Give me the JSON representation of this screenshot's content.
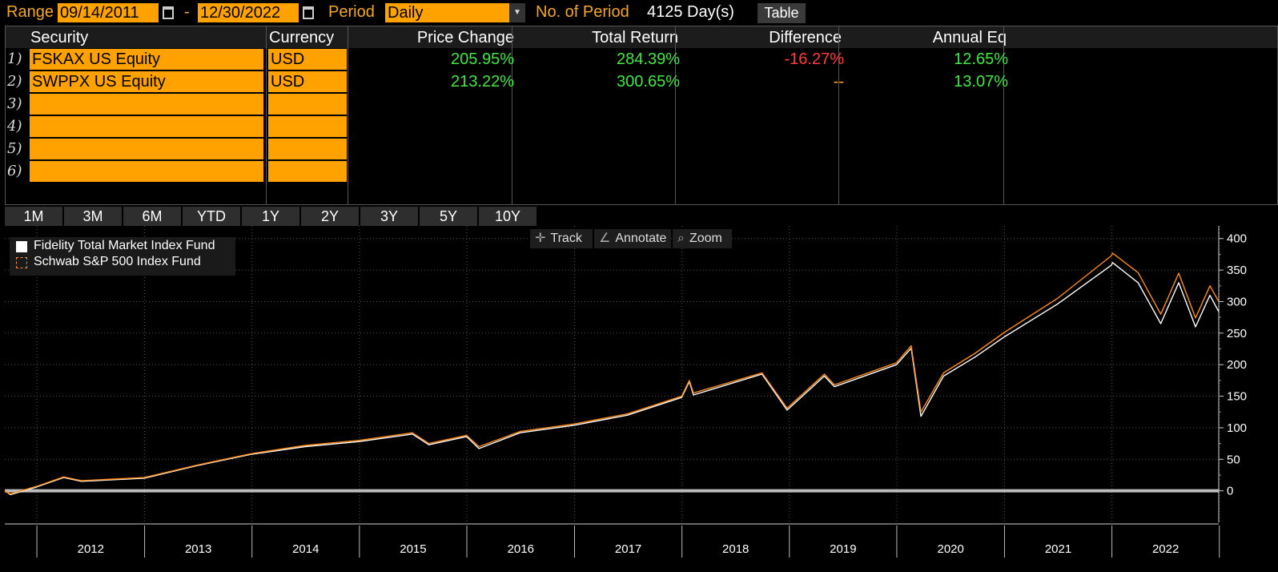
{
  "topbar": {
    "range_label": "Range",
    "start_date": "09/14/2011",
    "dash": "-",
    "end_date": "12/30/2022",
    "period_label": "Period",
    "period_value": "Daily",
    "num_period_label": "No. of Period",
    "num_period_value": "4125 Day(s)",
    "table_button": "Table"
  },
  "grid": {
    "headers": [
      "Security",
      "Currency",
      "Price Change",
      "Total Return",
      "Difference",
      "Annual Eq"
    ],
    "rows": [
      {
        "num": "1)",
        "security": "FSKAX US Equity",
        "currency": "USD",
        "price_change": "205.95%",
        "total_return": "284.39%",
        "difference": "-16.27%",
        "annual_eq": "12.65%"
      },
      {
        "num": "2)",
        "security": "SWPPX US Equity",
        "currency": "USD",
        "price_change": "213.22%",
        "total_return": "300.65%",
        "difference": "--",
        "annual_eq": "13.07%"
      },
      {
        "num": "3)"
      },
      {
        "num": "4)"
      },
      {
        "num": "5)"
      },
      {
        "num": "6)"
      }
    ]
  },
  "period_buttons": [
    "1M",
    "3M",
    "6M",
    "YTD",
    "1Y",
    "2Y",
    "3Y",
    "5Y",
    "10Y"
  ],
  "tools": {
    "track": "Track",
    "annotate": "Annotate",
    "zoom": "Zoom"
  },
  "colors": {
    "accent_orange": "#ffa200",
    "positive": "#3fe83f",
    "negative": "#ff3b3b",
    "series_1": "#ffffff",
    "series_2": "#ff8c1a"
  },
  "icons": {
    "track": "crosshair-icon",
    "annotate": "pencil-icon",
    "zoom": "magnifier-icon"
  },
  "chart_data": {
    "type": "line",
    "xlim": [
      "2011-09-14",
      "2022-12-30"
    ],
    "ylim": [
      -50,
      420
    ],
    "y_ticks": [
      0,
      50,
      100,
      150,
      200,
      250,
      300,
      350,
      400
    ],
    "y_tick_labels": [
      "0",
      "50",
      "100",
      "150",
      "200",
      "250",
      "300",
      "350",
      "400"
    ],
    "x_tick_labels": [
      "2012",
      "2013",
      "2014",
      "2015",
      "2016",
      "2017",
      "2018",
      "2019",
      "2020",
      "2021",
      "2022"
    ],
    "grid": true,
    "legend_position": "top-left",
    "series": [
      {
        "name": "Fidelity Total Market Index Fund",
        "x": [
          "2011-09-14",
          "2011-10-03",
          "2011-12-31",
          "2012-04-01",
          "2012-06-01",
          "2012-12-31",
          "2013-06-30",
          "2013-12-31",
          "2014-06-30",
          "2014-12-31",
          "2015-06-30",
          "2015-08-25",
          "2015-12-31",
          "2016-02-11",
          "2016-06-30",
          "2016-12-31",
          "2017-06-30",
          "2017-12-31",
          "2018-01-26",
          "2018-02-09",
          "2018-09-30",
          "2018-12-24",
          "2019-04-30",
          "2019-06-03",
          "2019-12-31",
          "2020-02-19",
          "2020-03-23",
          "2020-06-08",
          "2020-09-23",
          "2020-12-31",
          "2021-06-30",
          "2021-12-31",
          "2022-01-03",
          "2022-03-31",
          "2022-06-16",
          "2022-08-16",
          "2022-10-12",
          "2022-11-30",
          "2022-12-30"
        ],
        "y": [
          0,
          -6,
          6,
          21,
          15,
          20,
          40,
          58,
          70,
          78,
          90,
          73,
          86,
          67,
          92,
          104,
          120,
          148,
          173,
          152,
          185,
          128,
          182,
          165,
          200,
          226,
          118,
          182,
          212,
          244,
          296,
          358,
          362,
          330,
          265,
          330,
          260,
          310,
          284
        ]
      },
      {
        "name": "Schwab S&P 500 Index Fund",
        "x": [
          "2011-09-14",
          "2011-10-03",
          "2011-12-31",
          "2012-04-01",
          "2012-06-01",
          "2012-12-31",
          "2013-06-30",
          "2013-12-31",
          "2014-06-30",
          "2014-12-31",
          "2015-06-30",
          "2015-08-25",
          "2015-12-31",
          "2016-02-11",
          "2016-06-30",
          "2016-12-31",
          "2017-06-30",
          "2017-12-31",
          "2018-01-26",
          "2018-02-09",
          "2018-09-30",
          "2018-12-24",
          "2019-04-30",
          "2019-06-03",
          "2019-12-31",
          "2020-02-19",
          "2020-03-23",
          "2020-06-08",
          "2020-09-23",
          "2020-12-31",
          "2021-06-30",
          "2021-12-31",
          "2022-01-03",
          "2022-03-31",
          "2022-06-16",
          "2022-08-16",
          "2022-10-12",
          "2022-11-30",
          "2022-12-30"
        ],
        "y": [
          0,
          -5,
          7,
          22,
          16,
          21,
          41,
          59,
          72,
          80,
          92,
          75,
          88,
          70,
          94,
          106,
          122,
          150,
          175,
          155,
          187,
          131,
          185,
          168,
          203,
          230,
          125,
          187,
          218,
          251,
          305,
          373,
          377,
          346,
          280,
          345,
          274,
          325,
          300
        ]
      }
    ]
  }
}
